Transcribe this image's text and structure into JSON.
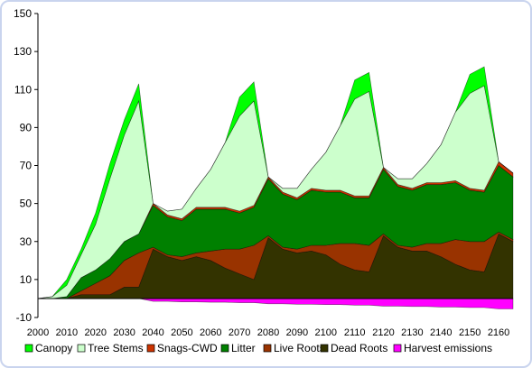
{
  "chart_data": {
    "type": "area",
    "stacked": true,
    "title": "",
    "xlabel": "",
    "ylabel": "",
    "xlim": [
      2000,
      2165
    ],
    "ylim": [
      -10,
      150
    ],
    "yticks": [
      -10,
      10,
      30,
      50,
      70,
      90,
      110,
      130,
      150
    ],
    "xticks": [
      2000,
      2010,
      2020,
      2030,
      2040,
      2050,
      2060,
      2070,
      2080,
      2090,
      2100,
      2110,
      2120,
      2130,
      2140,
      2150,
      2160
    ],
    "grid": false,
    "legend_position": "bottom",
    "x": [
      2000,
      2005,
      2010,
      2015,
      2020,
      2025,
      2030,
      2035,
      2040,
      2045,
      2050,
      2055,
      2060,
      2065,
      2070,
      2075,
      2080,
      2085,
      2090,
      2095,
      2100,
      2105,
      2110,
      2115,
      2120,
      2125,
      2130,
      2135,
      2140,
      2145,
      2150,
      2155,
      2160,
      2165
    ],
    "series": [
      {
        "name": "Dead Roots",
        "color": "#333300",
        "values": [
          0,
          0,
          0,
          2,
          2,
          2,
          6,
          6,
          26,
          22,
          20,
          22,
          20,
          16,
          13,
          10,
          32,
          26,
          24,
          25,
          23,
          18,
          15,
          14,
          33,
          27,
          25,
          25,
          22,
          18,
          15,
          14,
          34,
          30
        ]
      },
      {
        "name": "Live Roots",
        "color": "#993300",
        "values": [
          0,
          0,
          0,
          2,
          6,
          10,
          14,
          18,
          1,
          1,
          2,
          2,
          5,
          10,
          13,
          18,
          1,
          1,
          2,
          3,
          5,
          11,
          14,
          14,
          1,
          1,
          2,
          4,
          7,
          13,
          15,
          16,
          1,
          1
        ]
      },
      {
        "name": "Litter",
        "color": "#008000",
        "values": [
          0,
          0,
          1,
          7,
          7,
          9,
          10,
          10,
          22,
          20,
          19,
          23,
          22,
          21,
          19,
          20,
          30,
          28,
          26,
          29,
          28,
          27,
          24,
          25,
          34,
          31,
          30,
          31,
          31,
          30,
          27,
          26,
          35,
          33
        ]
      },
      {
        "name": "Snags-CWD",
        "color": "#cc3300",
        "values": [
          0,
          0,
          0,
          0,
          0,
          0,
          0,
          0,
          1,
          1,
          1,
          1,
          1,
          1,
          1,
          1,
          1,
          1,
          1,
          1,
          1,
          1,
          1,
          1,
          1,
          1,
          1,
          1,
          1,
          1,
          1,
          1,
          2,
          2
        ]
      },
      {
        "name": "Tree Stems",
        "color": "#ccffcc",
        "values": [
          0,
          1,
          6,
          12,
          24,
          42,
          56,
          70,
          0,
          2,
          5,
          10,
          20,
          34,
          50,
          55,
          0,
          2,
          5,
          10,
          20,
          34,
          51,
          55,
          0,
          3,
          5,
          10,
          20,
          36,
          50,
          55,
          0,
          0
        ]
      },
      {
        "name": "Canopy",
        "color": "#00ff00",
        "values": [
          0,
          0,
          3,
          3,
          6,
          8,
          8,
          9,
          0,
          0,
          0,
          0,
          0,
          0,
          10,
          10,
          0,
          0,
          0,
          0,
          0,
          0,
          10,
          10,
          0,
          0,
          0,
          0,
          0,
          0,
          10,
          10,
          0,
          0
        ]
      },
      {
        "name": "Harvest emissions",
        "color": "#ff00ff",
        "baseline": "below-zero",
        "values": [
          0,
          0,
          0,
          0,
          0,
          0,
          0,
          0,
          -1.5,
          -1.5,
          -1.8,
          -1.8,
          -2,
          -2,
          -2.2,
          -2.2,
          -2.8,
          -2.8,
          -3,
          -3,
          -3.2,
          -3.2,
          -3.5,
          -3.5,
          -4,
          -4,
          -4.2,
          -4.2,
          -4.5,
          -4.5,
          -4.8,
          -4.8,
          -5.5,
          -5.5
        ]
      }
    ],
    "legend": [
      "Canopy",
      "Tree Stems",
      "Snags-CWD",
      "Litter",
      "Live Roots",
      "Dead Roots",
      "Harvest emissions"
    ]
  }
}
